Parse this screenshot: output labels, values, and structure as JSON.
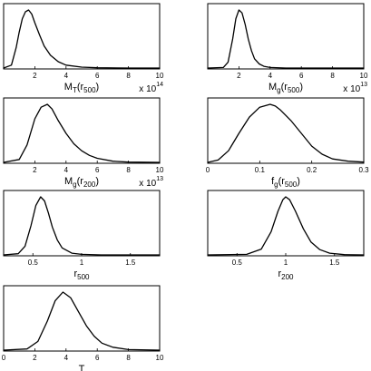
{
  "chart_data": [
    {
      "type": "line",
      "xlabel": {
        "main": "M",
        "sub1": "T",
        "mid": "(r",
        "sub2": "500",
        "end": ")"
      },
      "multiplier": {
        "base": "x 10",
        "exp": "14"
      },
      "xlim": [
        0,
        10
      ],
      "xticks": [
        "",
        "2",
        "4",
        "6",
        "8",
        "10"
      ],
      "xtick_values": [
        0,
        2,
        4,
        6,
        8,
        10
      ],
      "series": [
        {
          "x": [
            0,
            0.5,
            0.8,
            1.0,
            1.2,
            1.4,
            1.6,
            1.8,
            2.0,
            2.3,
            2.6,
            3.0,
            3.5,
            4.0,
            5.0,
            6.0,
            8.0,
            10.0
          ],
          "y": [
            0,
            0.05,
            0.35,
            0.62,
            0.85,
            0.97,
            1.0,
            0.93,
            0.78,
            0.57,
            0.38,
            0.22,
            0.11,
            0.05,
            0.015,
            0.004,
            0,
            0
          ]
        }
      ]
    },
    {
      "type": "line",
      "xlabel": {
        "main": "M",
        "sub1": "g",
        "mid": "(r",
        "sub2": "500",
        "end": ")"
      },
      "multiplier": {
        "base": "x 10",
        "exp": "13"
      },
      "xlim": [
        0,
        10
      ],
      "xticks": [
        "",
        "2",
        "4",
        "6",
        "8",
        "10"
      ],
      "xtick_values": [
        0,
        2,
        4,
        6,
        8,
        10
      ],
      "series": [
        {
          "x": [
            0,
            1.0,
            1.3,
            1.6,
            1.8,
            2.0,
            2.2,
            2.4,
            2.6,
            2.8,
            3.0,
            3.3,
            3.6,
            4.0,
            5.0,
            10.0
          ],
          "y": [
            0,
            0.01,
            0.1,
            0.5,
            0.85,
            1.0,
            0.95,
            0.75,
            0.5,
            0.3,
            0.16,
            0.07,
            0.03,
            0.01,
            0,
            0
          ]
        }
      ]
    },
    {
      "type": "line",
      "xlabel": {
        "main": "M",
        "sub1": "g",
        "mid": "(r",
        "sub2": "200",
        "end": ")"
      },
      "multiplier": {
        "base": "x 10",
        "exp": "13"
      },
      "xlim": [
        0,
        10
      ],
      "xticks": [
        "",
        "2",
        "4",
        "6",
        "8",
        "10"
      ],
      "xtick_values": [
        0,
        2,
        4,
        6,
        8,
        10
      ],
      "series": [
        {
          "x": [
            0,
            1.0,
            1.5,
            2.0,
            2.4,
            2.8,
            3.1,
            3.5,
            4.0,
            4.5,
            5.0,
            5.5,
            6.0,
            7.0,
            8.0,
            10.0
          ],
          "y": [
            0,
            0.05,
            0.3,
            0.75,
            0.95,
            1.0,
            0.92,
            0.72,
            0.5,
            0.32,
            0.2,
            0.12,
            0.07,
            0.02,
            0.005,
            0
          ]
        }
      ]
    },
    {
      "type": "line",
      "xlabel": {
        "main": "f",
        "sub1": "g",
        "mid": "(r",
        "sub2": "500",
        "end": ")"
      },
      "multiplier": null,
      "xlim": [
        0,
        0.3
      ],
      "xticks": [
        "0",
        "0.1",
        "0.2",
        "0.3"
      ],
      "xtick_values": [
        0,
        0.1,
        0.2,
        0.3
      ],
      "series": [
        {
          "x": [
            0,
            0.02,
            0.04,
            0.06,
            0.08,
            0.1,
            0.12,
            0.13,
            0.14,
            0.16,
            0.18,
            0.2,
            0.22,
            0.24,
            0.27,
            0.3
          ],
          "y": [
            0,
            0.04,
            0.2,
            0.5,
            0.78,
            0.95,
            1.0,
            0.97,
            0.9,
            0.72,
            0.5,
            0.28,
            0.14,
            0.06,
            0.02,
            0.005
          ]
        }
      ]
    },
    {
      "type": "line",
      "xlabel": {
        "main": "r",
        "sub1": "",
        "mid": "",
        "sub2": "500",
        "end": ""
      },
      "multiplier": null,
      "xlim": [
        0.2,
        1.8
      ],
      "xticks": [
        "0.5",
        "1",
        "1.5"
      ],
      "xtick_values": [
        0.5,
        1.0,
        1.5
      ],
      "series": [
        {
          "x": [
            0.2,
            0.35,
            0.42,
            0.48,
            0.53,
            0.58,
            0.62,
            0.66,
            0.7,
            0.75,
            0.8,
            0.9,
            1.0,
            1.2,
            1.8
          ],
          "y": [
            0,
            0.02,
            0.15,
            0.5,
            0.85,
            1.0,
            0.93,
            0.72,
            0.48,
            0.26,
            0.12,
            0.03,
            0.01,
            0,
            0
          ]
        }
      ]
    },
    {
      "type": "line",
      "xlabel": {
        "main": "r",
        "sub1": "",
        "mid": "",
        "sub2": "200",
        "end": ""
      },
      "multiplier": null,
      "xlim": [
        0.2,
        1.8
      ],
      "xticks": [
        "0.5",
        "1",
        "1.5"
      ],
      "xtick_values": [
        0.5,
        1.0,
        1.5
      ],
      "series": [
        {
          "x": [
            0.2,
            0.6,
            0.75,
            0.85,
            0.92,
            0.97,
            1.0,
            1.04,
            1.1,
            1.18,
            1.26,
            1.35,
            1.45,
            1.6,
            1.8
          ],
          "y": [
            0,
            0.01,
            0.1,
            0.4,
            0.75,
            0.95,
            1.0,
            0.95,
            0.75,
            0.45,
            0.22,
            0.09,
            0.03,
            0.005,
            0
          ]
        }
      ]
    },
    {
      "type": "line",
      "xlabel": {
        "main": "T",
        "sub1": "",
        "mid": "",
        "sub2": "",
        "end": ""
      },
      "multiplier": null,
      "xlim": [
        0,
        10
      ],
      "xticks": [
        "0",
        "2",
        "4",
        "6",
        "8",
        "10"
      ],
      "xtick_values": [
        0,
        2,
        4,
        6,
        8,
        10
      ],
      "series": [
        {
          "x": [
            0,
            1.5,
            2.2,
            2.8,
            3.3,
            3.8,
            4.3,
            4.8,
            5.3,
            5.8,
            6.3,
            7.0,
            8.0,
            10.0
          ],
          "y": [
            0,
            0.02,
            0.15,
            0.5,
            0.85,
            1.0,
            0.9,
            0.66,
            0.42,
            0.24,
            0.12,
            0.05,
            0.01,
            0
          ]
        }
      ]
    }
  ]
}
